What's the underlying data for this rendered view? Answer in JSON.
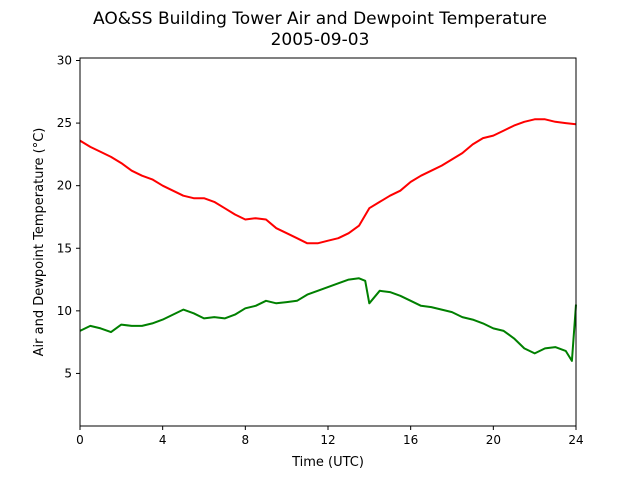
{
  "chart_data": {
    "type": "line",
    "title": "AO&SS Building Tower Air and Dewpoint Temperature",
    "subtitle": "2005-09-03",
    "xlabel": "Time (UTC)",
    "ylabel": "Air and Dewpoint Temperature (°C)",
    "xlim": [
      0,
      24
    ],
    "ylim": [
      0.8,
      30.2
    ],
    "xticks": [
      0,
      4,
      8,
      12,
      16,
      20,
      24
    ],
    "yticks": [
      5,
      10,
      15,
      20,
      25,
      30
    ],
    "grid": false,
    "legend": "none",
    "series": [
      {
        "color": "#ff0000",
        "x": [
          0,
          0.5,
          1,
          1.5,
          2,
          2.5,
          3,
          3.5,
          4,
          4.5,
          5,
          5.5,
          6,
          6.5,
          7,
          7.5,
          8,
          8.5,
          9,
          9.5,
          10,
          10.5,
          11,
          11.5,
          12,
          12.5,
          13,
          13.5,
          14,
          14.5,
          15,
          15.5,
          16,
          16.5,
          17,
          17.5,
          18,
          18.5,
          19,
          19.5,
          20,
          20.5,
          21,
          21.5,
          22,
          22.5,
          23,
          23.5,
          24
        ],
        "y": [
          23.6,
          23.1,
          22.7,
          22.3,
          21.8,
          21.2,
          20.8,
          20.5,
          20.0,
          19.6,
          19.2,
          19.0,
          19.0,
          18.7,
          18.2,
          17.7,
          17.3,
          17.4,
          17.3,
          16.6,
          16.2,
          15.8,
          15.4,
          15.4,
          15.6,
          15.8,
          16.2,
          16.8,
          18.2,
          18.7,
          19.2,
          19.6,
          20.3,
          20.8,
          21.2,
          21.6,
          22.1,
          22.6,
          23.3,
          23.8,
          24.0,
          24.4,
          24.8,
          25.1,
          25.3,
          25.3,
          25.1,
          25.0,
          24.9
        ]
      },
      {
        "color": "#008000",
        "x": [
          0,
          0.5,
          1,
          1.5,
          2,
          2.5,
          3,
          3.5,
          4,
          4.5,
          5,
          5.5,
          6,
          6.5,
          7,
          7.5,
          8,
          8.5,
          9,
          9.5,
          10,
          10.5,
          11,
          11.5,
          12,
          12.5,
          13,
          13.5,
          13.8,
          14,
          14.5,
          15,
          15.5,
          16,
          16.5,
          17,
          17.5,
          18,
          18.5,
          19,
          19.5,
          20,
          20.5,
          21,
          21.5,
          22,
          22.5,
          23,
          23.5,
          23.8,
          24
        ],
        "y": [
          8.4,
          8.8,
          8.6,
          8.3,
          8.9,
          8.8,
          8.8,
          9.0,
          9.3,
          9.7,
          10.1,
          9.8,
          9.4,
          9.5,
          9.4,
          9.7,
          10.2,
          10.4,
          10.8,
          10.6,
          10.7,
          10.8,
          11.3,
          11.6,
          11.9,
          12.2,
          12.5,
          12.6,
          12.4,
          10.6,
          11.6,
          11.5,
          11.2,
          10.8,
          10.4,
          10.3,
          10.1,
          9.9,
          9.5,
          9.3,
          9.0,
          8.6,
          8.4,
          7.8,
          7.0,
          6.6,
          7.0,
          7.1,
          6.8,
          6.0,
          10.5
        ]
      }
    ]
  }
}
